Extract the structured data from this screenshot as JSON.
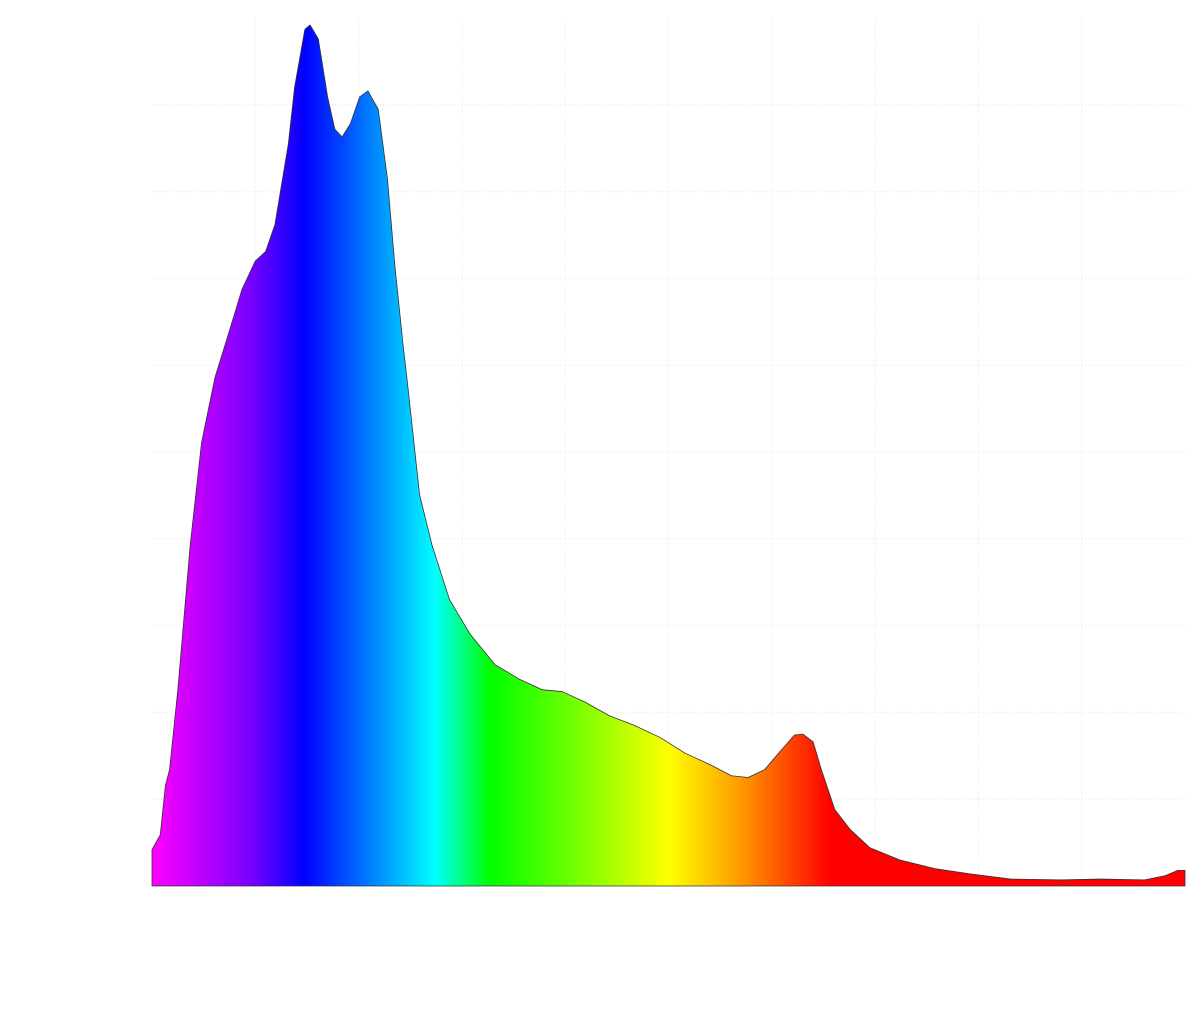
{
  "chart_data": {
    "type": "area",
    "x": [
      0,
      0.8,
      1.3,
      1.7,
      2.5,
      3.7,
      4.8,
      6.1,
      7.4,
      8.7,
      10.0,
      11.0,
      11.9,
      13.2,
      13.8,
      14.8,
      15.3,
      16.1,
      17.0,
      17.7,
      18.4,
      19.2,
      20.1,
      20.9,
      21.9,
      22.8,
      23.5,
      24.3,
      24.8,
      25.9,
      27.1,
      28.8,
      30.8,
      33.2,
      35.6,
      37.8,
      39.7,
      41.9,
      44.3,
      46.7,
      49.2,
      51.6,
      54.0,
      56.1,
      57.7,
      59.3,
      60.8,
      62.2,
      63.0,
      64.0,
      64.8,
      66.1,
      67.6,
      69.5,
      72.4,
      75.8,
      79.2,
      83.1,
      88.0,
      91.8,
      96.1,
      98.1,
      99.3,
      100
    ],
    "values": [
      0.42,
      0.59,
      1.16,
      1.34,
      2.26,
      3.93,
      5.11,
      5.86,
      6.36,
      6.87,
      7.2,
      7.31,
      7.62,
      8.55,
      9.2,
      9.87,
      9.92,
      9.76,
      9.09,
      8.72,
      8.63,
      8.78,
      9.09,
      9.16,
      8.95,
      8.14,
      7.16,
      6.24,
      5.72,
      4.51,
      3.93,
      3.3,
      2.9,
      2.55,
      2.38,
      2.26,
      2.24,
      2.12,
      1.96,
      1.85,
      1.71,
      1.53,
      1.4,
      1.27,
      1.25,
      1.34,
      1.55,
      1.74,
      1.75,
      1.66,
      1.34,
      0.88,
      0.65,
      0.44,
      0.3,
      0.2,
      0.14,
      0.08,
      0.07,
      0.08,
      0.07,
      0.12,
      0.18,
      0.18
    ],
    "gradient": [
      {
        "offset": 0,
        "color": "#ff00ff"
      },
      {
        "offset": 9.5,
        "color": "#7a00ff"
      },
      {
        "offset": 14.8,
        "color": "#0000ff"
      },
      {
        "offset": 22,
        "color": "#0090ff"
      },
      {
        "offset": 27.4,
        "color": "#00ffff"
      },
      {
        "offset": 32.7,
        "color": "#00ff00"
      },
      {
        "offset": 40,
        "color": "#66ff00"
      },
      {
        "offset": 50.1,
        "color": "#ffff00"
      },
      {
        "offset": 57,
        "color": "#ff9900"
      },
      {
        "offset": 65.6,
        "color": "#ff0000"
      },
      {
        "offset": 100,
        "color": "#ff0000"
      }
    ],
    "outline_color": "#333333",
    "xlim": [
      0,
      100
    ],
    "xticks": [
      10,
      20,
      30,
      40,
      50,
      60,
      70,
      80,
      90
    ],
    "ylim": [
      0,
      10
    ],
    "yticks": [
      1,
      2,
      3,
      4,
      5,
      6,
      7,
      8,
      9
    ],
    "grid": true
  }
}
